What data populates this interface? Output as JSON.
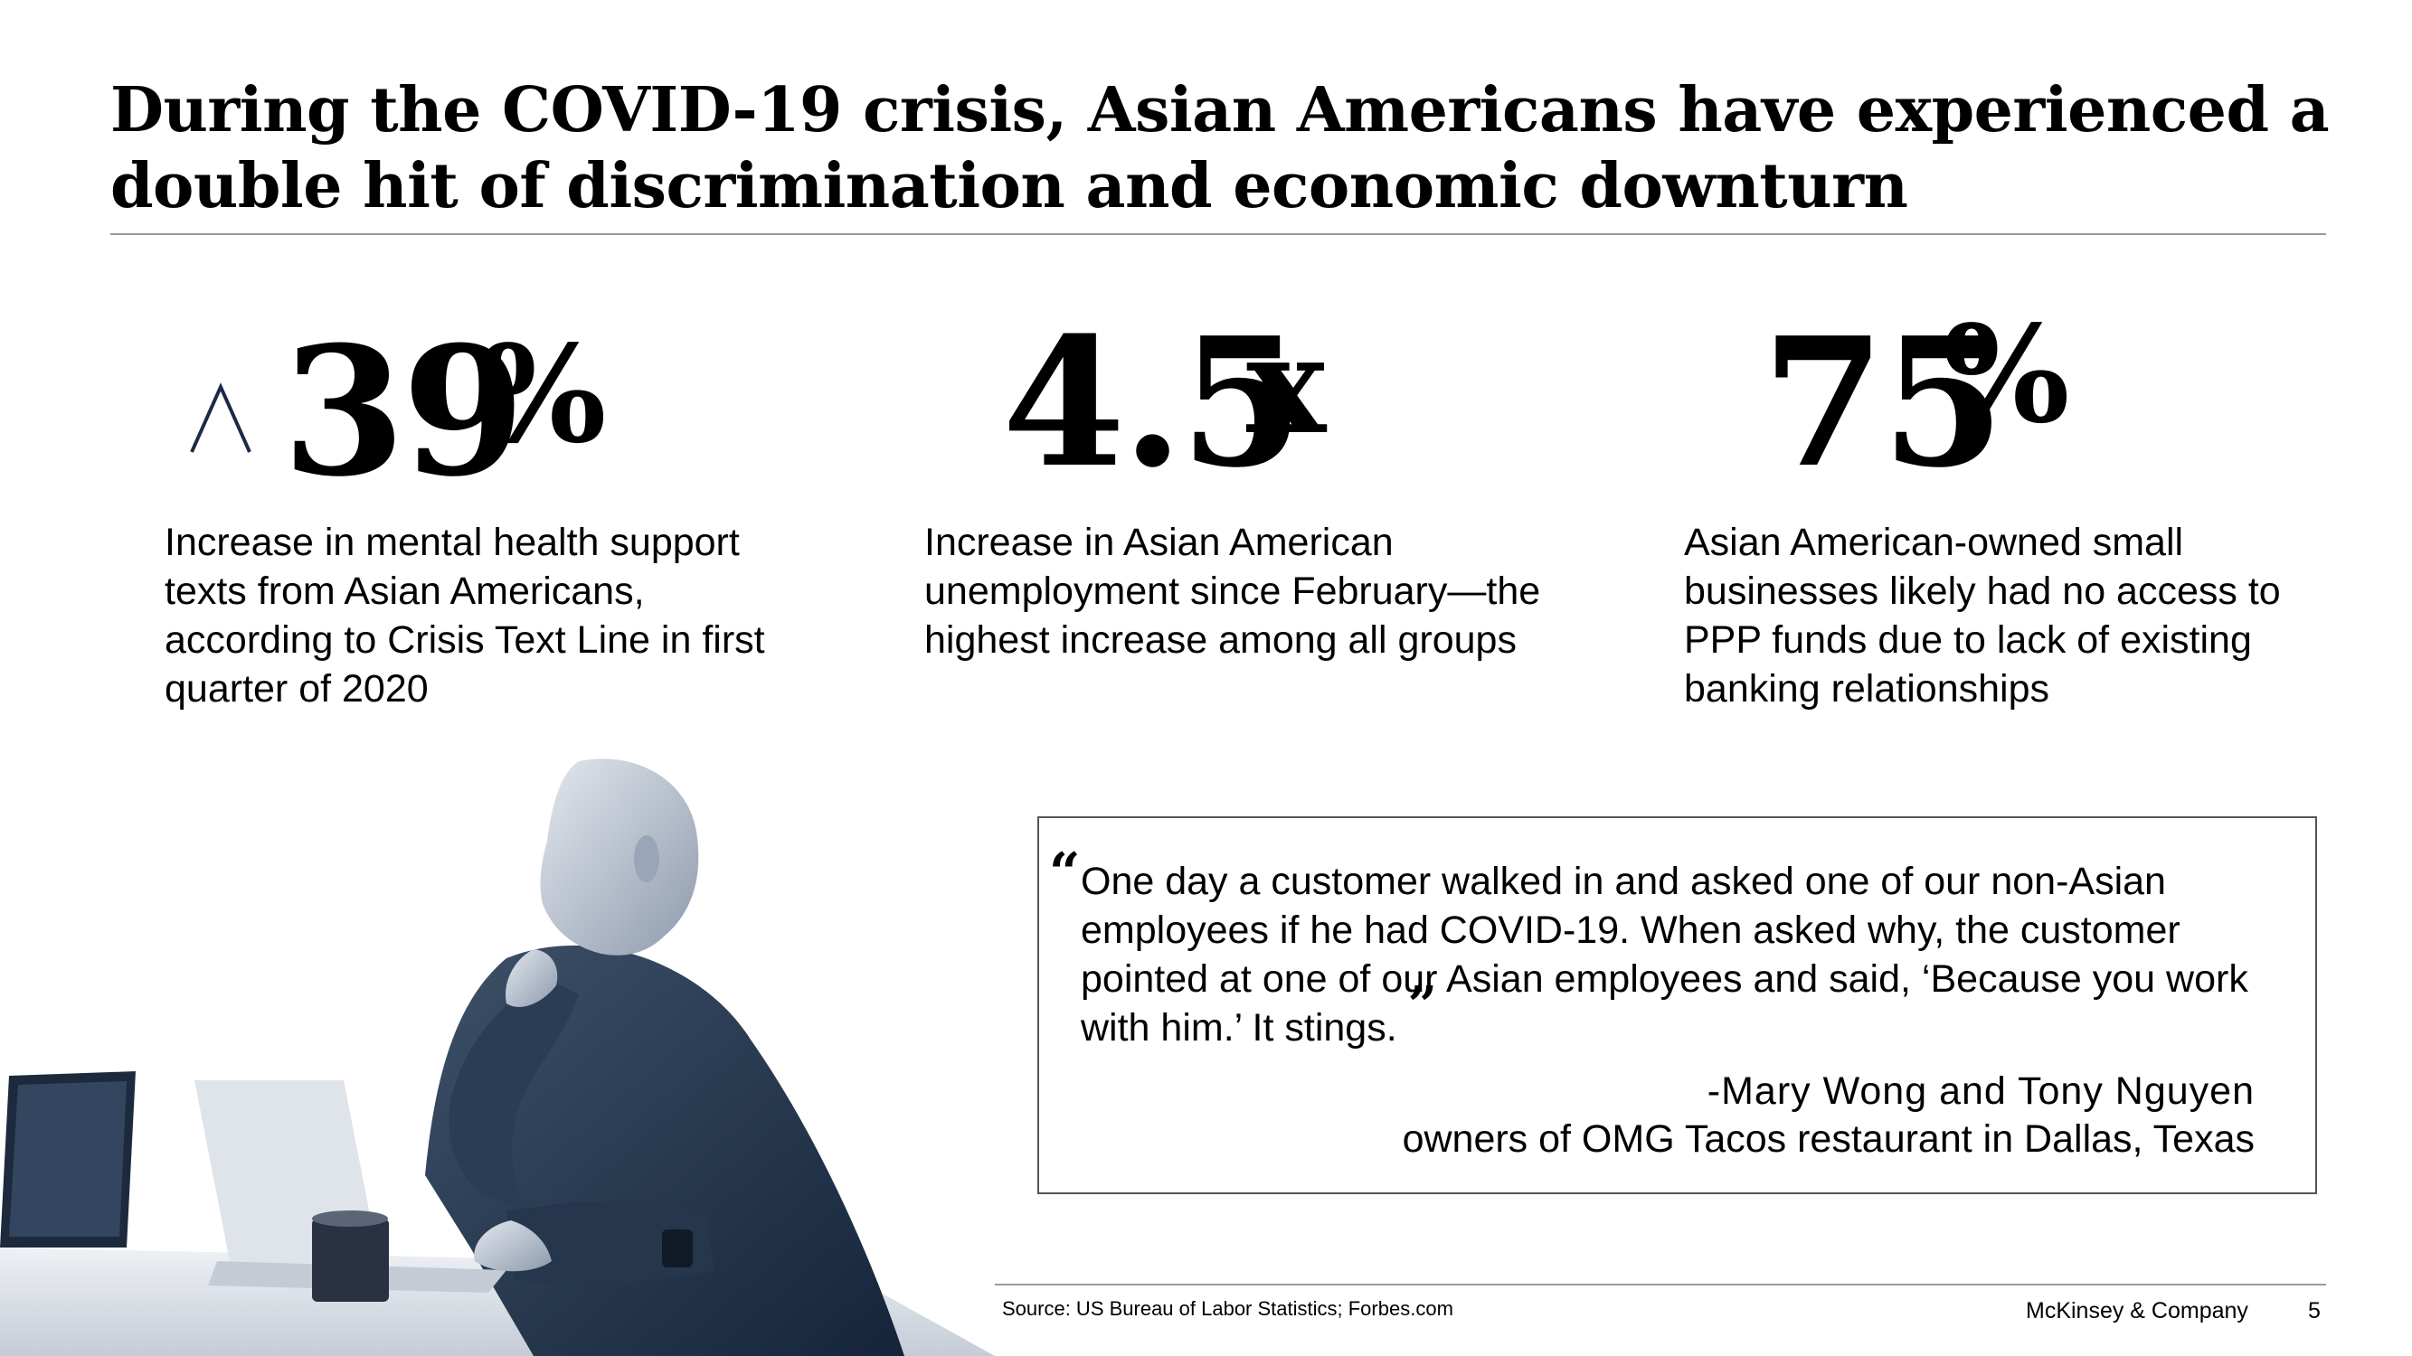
{
  "title": "During the COVID-19 crisis, Asian Americans have experienced a double hit of discrimination and economic downturn",
  "stats": [
    {
      "icon": "up-caret-icon",
      "number": "39",
      "suffix": "%",
      "description": "Increase in mental health support texts from Asian Americans, according to Crisis Text Line in first quarter of 2020"
    },
    {
      "number": "4.5",
      "suffix": "x",
      "description": "Increase in Asian American unemployment since February—the highest increase among all groups"
    },
    {
      "number": "75",
      "suffix": "%",
      "description": "Asian American-owned small businesses likely had no access to PPP funds due to lack of existing banking relationships"
    }
  ],
  "quote": {
    "open_mark": "“",
    "text": "One day a customer walked in and asked one of our non-Asian employees if he had COVID-19. When asked why, the customer pointed at one of our Asian employees and said, ‘Because you work with him.’ It stings.",
    "close_mark": "”",
    "attribution_name": "-Mary Wong and Tony Nguyen",
    "attribution_role": "owners of OMG Tacos restaurant in Dallas, Texas"
  },
  "footer": {
    "source": "Source: US Bureau of Labor Statistics; Forbes.com",
    "company": "McKinsey & Company",
    "page": "5"
  },
  "colors": {
    "accent_navy": "#1c2b45",
    "rule_gray": "#9a9a9a"
  }
}
